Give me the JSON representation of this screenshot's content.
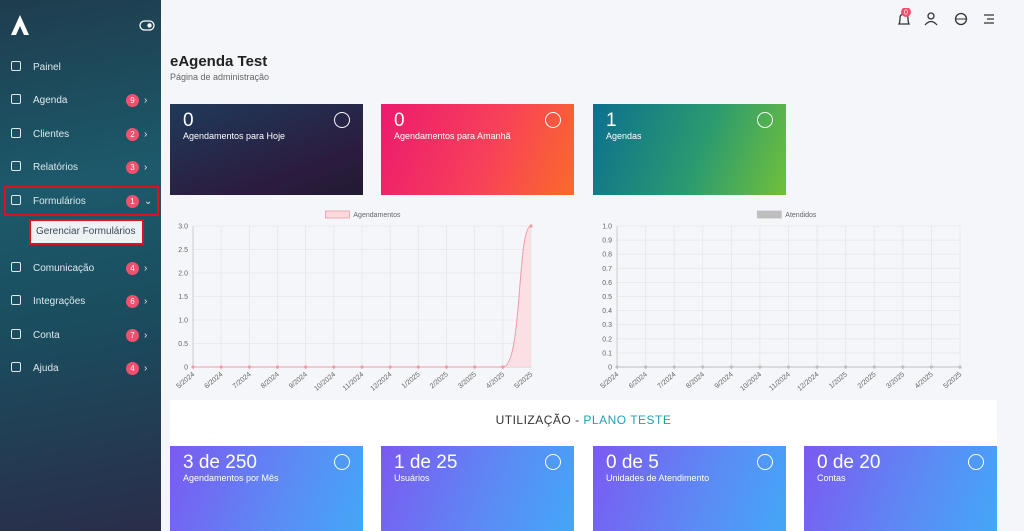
{
  "sidebar": {
    "items": [
      {
        "label": "Painel"
      },
      {
        "label": "Agenda",
        "badge": 9
      },
      {
        "label": "Clientes",
        "badge": 2
      },
      {
        "label": "Relatórios",
        "badge": 3
      },
      {
        "label": "Formulários",
        "badge": 1,
        "submenu": [
          "Gerenciar Formulários"
        ]
      },
      {
        "label": "Comunicação",
        "badge": 4
      },
      {
        "label": "Integrações",
        "badge": 6
      },
      {
        "label": "Conta",
        "badge": 7
      },
      {
        "label": "Ajuda",
        "badge": 4
      }
    ]
  },
  "topbar": {
    "notifications": 0
  },
  "header": {
    "title": "eAgenda Test",
    "subtitle": "Página de administração"
  },
  "stat_cards": [
    {
      "value": "0",
      "label": "Agendamentos para Hoje"
    },
    {
      "value": "0",
      "label": "Agendamentos para Amanhã"
    },
    {
      "value": "1",
      "label": "Agendas"
    }
  ],
  "chart_data": [
    {
      "type": "line",
      "x": [
        "5/2024",
        "6/2024",
        "7/2024",
        "8/2024",
        "9/2024",
        "10/2024",
        "11/2024",
        "12/2024",
        "1/2025",
        "2/2025",
        "3/2025",
        "4/2025",
        "5/2025"
      ],
      "series": [
        {
          "name": "Agendamentos",
          "color": "#f19aa8",
          "fill": "#fbd9de",
          "values": [
            0,
            0,
            0,
            0,
            0,
            0,
            0,
            0,
            0,
            0,
            0,
            0,
            3
          ]
        }
      ],
      "area": true,
      "grid": true,
      "ylim": [
        0,
        3
      ],
      "yticks": [
        0,
        0.5,
        {
          "value": 1,
          "label": "1.0"
        },
        1.5,
        {
          "value": 2,
          "label": "2.0"
        },
        2.5,
        {
          "value": 3,
          "label": "3.0"
        }
      ]
    },
    {
      "type": "line",
      "x": [
        "5/2024",
        "6/2024",
        "7/2024",
        "8/2024",
        "9/2024",
        "10/2024",
        "11/2024",
        "12/2024",
        "1/2025",
        "2/2025",
        "3/2025",
        "4/2025",
        "5/2025"
      ],
      "series": [
        {
          "name": "Atendidos",
          "color": "#bfbfbf",
          "values": [
            0,
            0,
            0,
            0,
            0,
            0,
            0,
            0,
            0,
            0,
            0,
            0,
            0
          ]
        }
      ],
      "area": false,
      "grid": true,
      "ylim": [
        0,
        1
      ],
      "yticks": [
        0,
        0.1,
        0.2,
        0.3,
        0.4,
        0.5,
        0.6,
        0.7,
        0.8,
        0.9,
        {
          "value": 1,
          "label": "1.0"
        }
      ]
    }
  ],
  "usage": {
    "title": "UTILIZAÇÃO - ",
    "plan": "PLANO TESTE",
    "cards": [
      {
        "value": "3 de 250",
        "label": "Agendamentos por Mês"
      },
      {
        "value": "1 de 25",
        "label": "Usuários"
      },
      {
        "value": "0 de 5",
        "label": "Unidades de Atendimento"
      },
      {
        "value": "0 de 20",
        "label": "Contas"
      }
    ]
  }
}
